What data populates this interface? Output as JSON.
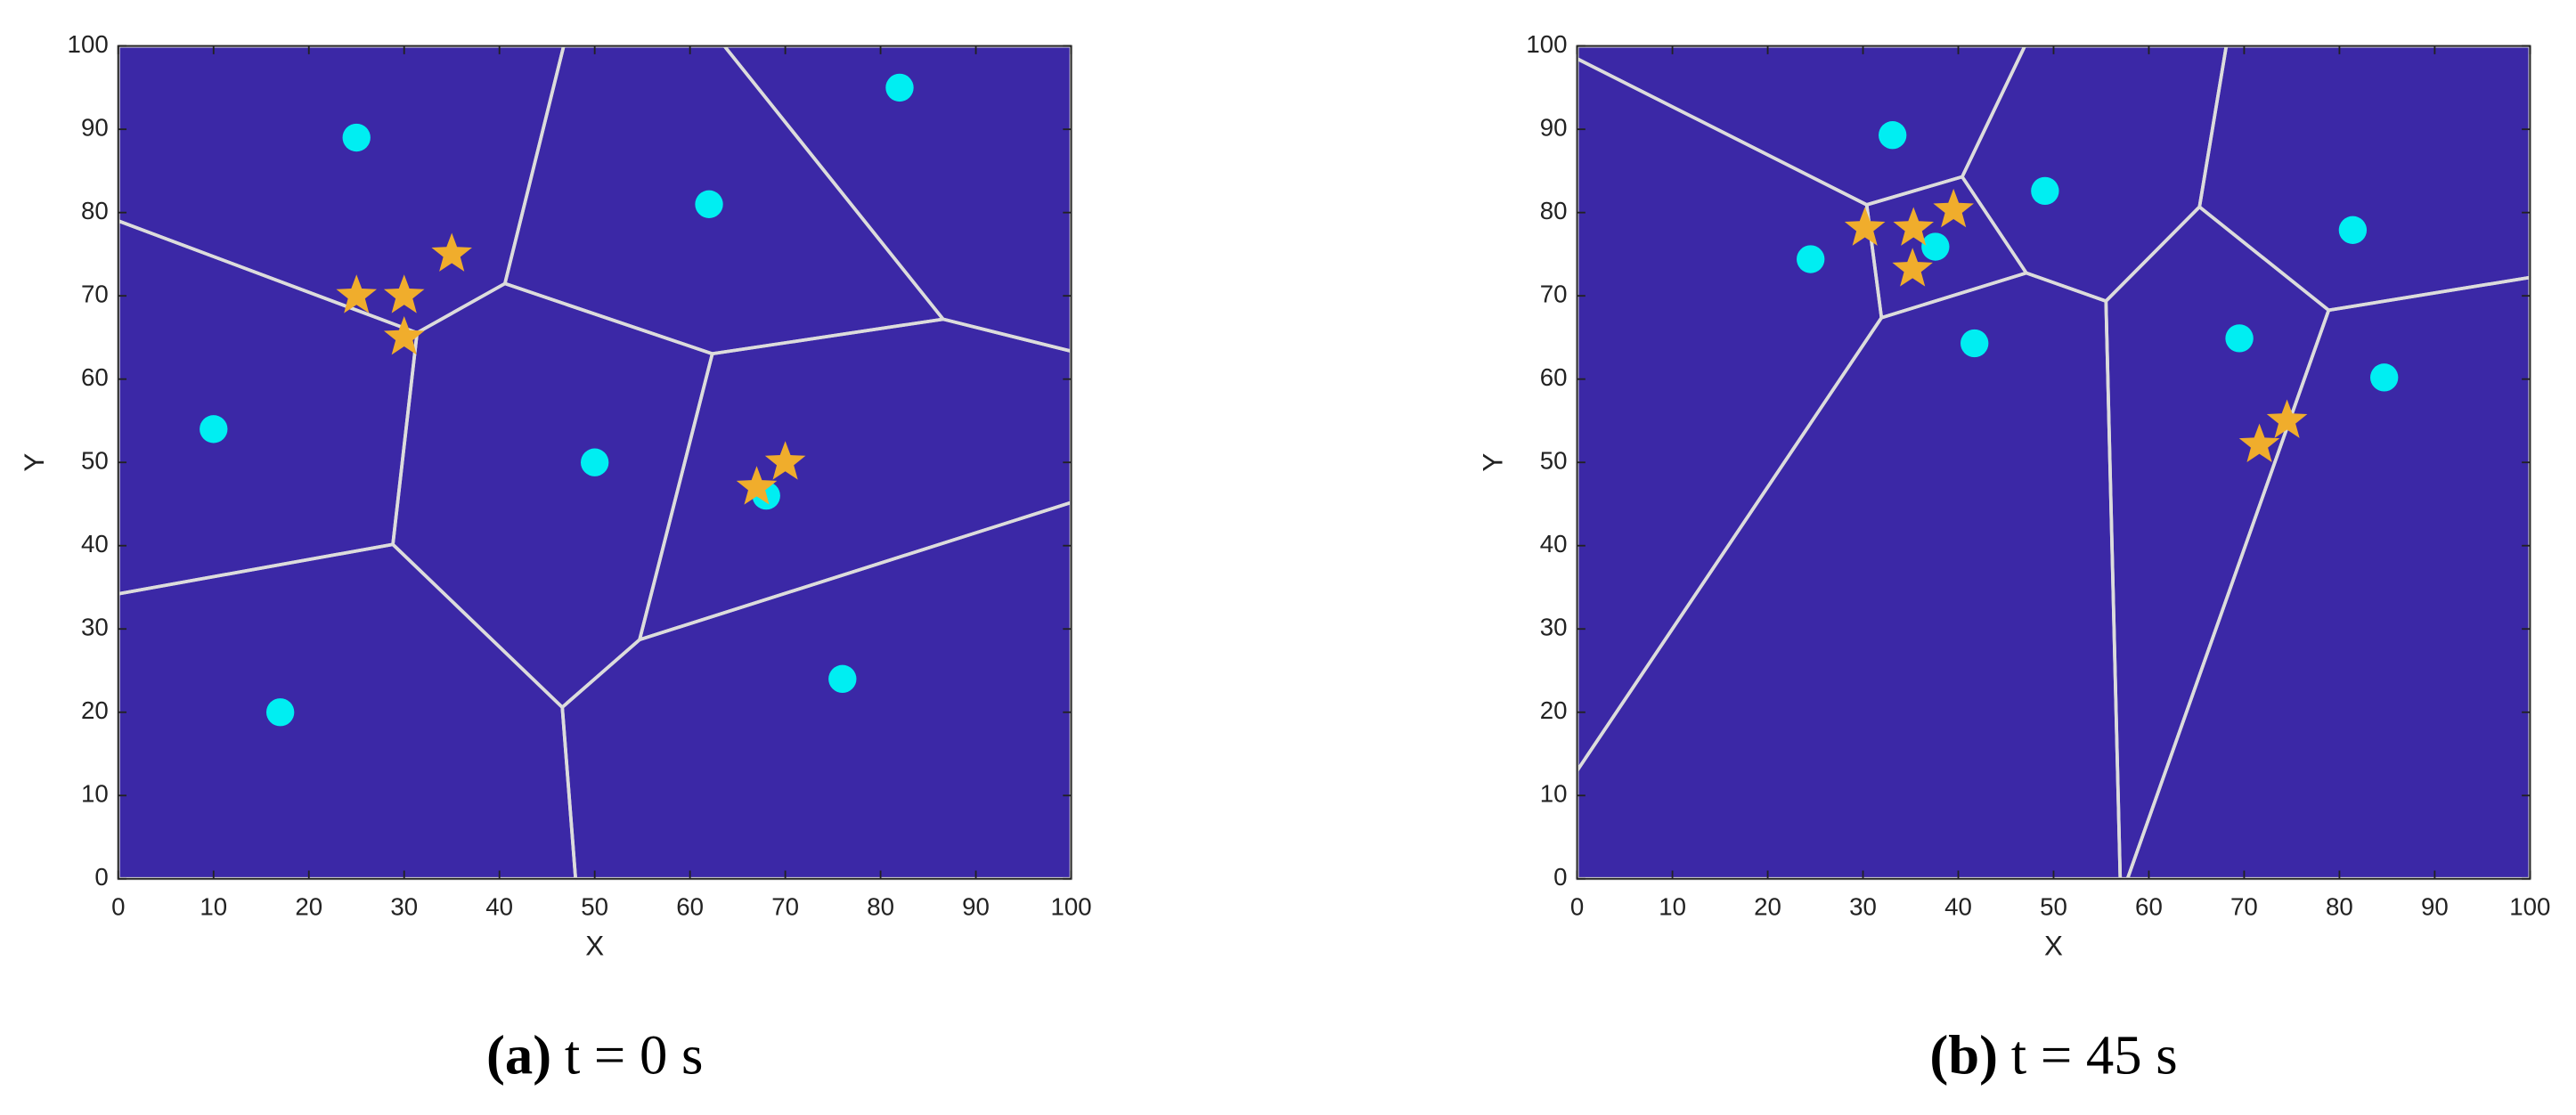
{
  "chart_data": [
    {
      "type": "scatter",
      "xlabel": "X",
      "ylabel": "Y",
      "xlim": [
        0,
        100
      ],
      "ylim": [
        0,
        100
      ],
      "xticks": [
        0,
        10,
        20,
        30,
        40,
        50,
        60,
        70,
        80,
        90,
        100
      ],
      "yticks": [
        0,
        10,
        20,
        30,
        40,
        50,
        60,
        70,
        80,
        90,
        100
      ],
      "background": "#3b28a6",
      "voronoi": true,
      "voronoi_color": "#dcdcdc",
      "series": [
        {
          "color": "#00eef2",
          "marker": "circle",
          "x": [
            25,
            82,
            62,
            10,
            50,
            68,
            17,
            76
          ],
          "values": [
            89,
            95,
            81,
            54,
            50,
            46,
            20,
            24
          ]
        },
        {
          "color": "#f0ad2c",
          "marker": "star",
          "x": [
            25,
            30,
            35,
            30,
            67,
            70
          ],
          "values": [
            70,
            70,
            75,
            65,
            47,
            50
          ]
        }
      ],
      "caption_label": "(a)",
      "caption": "t = 0 s"
    },
    {
      "type": "scatter",
      "xlabel": "X",
      "ylabel": "Y",
      "xlim": [
        0,
        100
      ],
      "ylim": [
        0,
        100
      ],
      "xticks": [
        0,
        10,
        20,
        30,
        40,
        50,
        60,
        70,
        80,
        90,
        100
      ],
      "yticks": [
        0,
        10,
        20,
        30,
        40,
        50,
        60,
        70,
        80,
        90,
        100
      ],
      "background": "#3b28a6",
      "voronoi": true,
      "voronoi_color": "#dcdcdc",
      "series": [
        {
          "color": "#00eef2",
          "marker": "circle",
          "x": [
            33.1,
            24.5,
            37.6,
            49.1,
            41.7,
            69.5,
            81.4,
            84.7
          ],
          "values": [
            89.3,
            74.4,
            75.9,
            82.6,
            64.3,
            64.9,
            77.9,
            60.2
          ]
        },
        {
          "color": "#f0ad2c",
          "marker": "star",
          "x": [
            30.2,
            35.3,
            39.5,
            35.2,
            71.6,
            74.5
          ],
          "values": [
            78.1,
            78.1,
            80.3,
            73.2,
            52.1,
            55.0
          ]
        }
      ],
      "caption_label": "(b)",
      "caption": "t = 45 s"
    }
  ]
}
